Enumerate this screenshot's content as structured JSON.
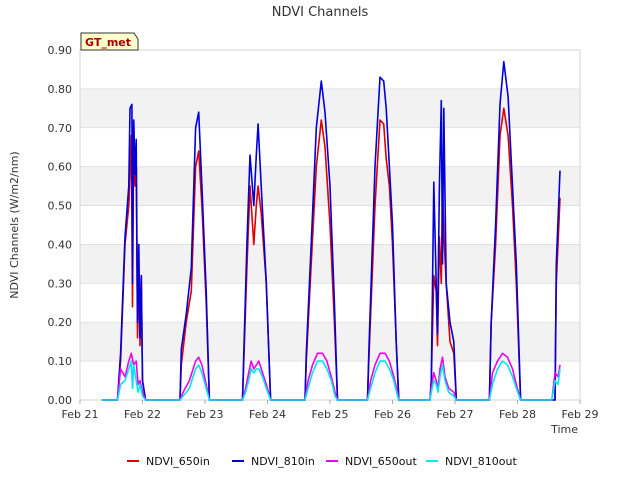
{
  "chart_data": {
    "type": "line",
    "title": "NDVI Channels",
    "xlabel": "Time",
    "ylabel": "NDVI Channels (W/m2/nm)",
    "badge": "GT_met",
    "xlim": [
      21.0,
      29.0
    ],
    "ylim": [
      0.0,
      0.9
    ],
    "x_ticks": [
      21,
      22,
      23,
      24,
      25,
      26,
      27,
      28,
      29
    ],
    "x_tick_labels": [
      "Feb 21",
      "Feb 22",
      "Feb 23",
      "Feb 24",
      "Feb 25",
      "Feb 26",
      "Feb 27",
      "Feb 28",
      "Feb 29"
    ],
    "y_ticks": [
      0.0,
      0.1,
      0.2,
      0.3,
      0.4,
      0.5,
      0.6,
      0.7,
      0.8,
      0.9
    ],
    "y_tick_labels": [
      "0.00",
      "0.10",
      "0.20",
      "0.30",
      "0.40",
      "0.50",
      "0.60",
      "0.70",
      "0.80",
      "0.90"
    ],
    "legend_position": "bottom",
    "series": [
      {
        "name": "NDVI_650in",
        "color": "#dd0000",
        "points": [
          [
            21.35,
            0
          ],
          [
            21.6,
            0
          ],
          [
            21.65,
            0.1
          ],
          [
            21.72,
            0.4
          ],
          [
            21.78,
            0.5
          ],
          [
            21.82,
            0.68
          ],
          [
            21.84,
            0.24
          ],
          [
            21.86,
            0.72
          ],
          [
            21.88,
            0.55
          ],
          [
            21.9,
            0.6
          ],
          [
            21.92,
            0.16
          ],
          [
            21.94,
            0.33
          ],
          [
            21.96,
            0.14
          ],
          [
            21.98,
            0.32
          ],
          [
            22.0,
            0.05
          ],
          [
            22.05,
            0
          ],
          [
            22.6,
            0
          ],
          [
            22.62,
            0.09
          ],
          [
            22.7,
            0.2
          ],
          [
            22.78,
            0.28
          ],
          [
            22.85,
            0.6
          ],
          [
            22.9,
            0.64
          ],
          [
            22.95,
            0.5
          ],
          [
            23.02,
            0.25
          ],
          [
            23.07,
            0
          ],
          [
            23.6,
            0
          ],
          [
            23.62,
            0.1
          ],
          [
            23.67,
            0.34
          ],
          [
            23.72,
            0.55
          ],
          [
            23.78,
            0.4
          ],
          [
            23.82,
            0.5
          ],
          [
            23.85,
            0.55
          ],
          [
            23.9,
            0.48
          ],
          [
            23.98,
            0.3
          ],
          [
            24.05,
            0
          ],
          [
            24.6,
            0
          ],
          [
            24.62,
            0.1
          ],
          [
            24.7,
            0.35
          ],
          [
            24.78,
            0.6
          ],
          [
            24.86,
            0.72
          ],
          [
            24.92,
            0.65
          ],
          [
            25.0,
            0.45
          ],
          [
            25.07,
            0.2
          ],
          [
            25.12,
            0
          ],
          [
            25.6,
            0
          ],
          [
            25.62,
            0.1
          ],
          [
            25.72,
            0.5
          ],
          [
            25.8,
            0.72
          ],
          [
            25.86,
            0.71
          ],
          [
            25.9,
            0.62
          ],
          [
            25.95,
            0.55
          ],
          [
            26.0,
            0.4
          ],
          [
            26.06,
            0.15
          ],
          [
            26.1,
            0
          ],
          [
            26.6,
            0
          ],
          [
            26.62,
            0.05
          ],
          [
            26.66,
            0.32
          ],
          [
            26.7,
            0.28
          ],
          [
            26.72,
            0.14
          ],
          [
            26.75,
            0.42
          ],
          [
            26.78,
            0.3
          ],
          [
            26.8,
            0.55
          ],
          [
            26.82,
            0.43
          ],
          [
            26.86,
            0.3
          ],
          [
            26.92,
            0.15
          ],
          [
            26.98,
            0.12
          ],
          [
            27.02,
            0
          ],
          [
            27.55,
            0
          ],
          [
            27.58,
            0.2
          ],
          [
            27.65,
            0.4
          ],
          [
            27.72,
            0.68
          ],
          [
            27.78,
            0.75
          ],
          [
            27.85,
            0.68
          ],
          [
            27.92,
            0.5
          ],
          [
            27.98,
            0.3
          ],
          [
            28.05,
            0
          ],
          [
            28.6,
            0
          ],
          [
            28.62,
            0.3
          ],
          [
            28.68,
            0.52
          ]
        ]
      },
      {
        "name": "NDVI_810in",
        "color": "#0000dd",
        "points": [
          [
            21.35,
            0
          ],
          [
            21.6,
            0
          ],
          [
            21.65,
            0.12
          ],
          [
            21.72,
            0.42
          ],
          [
            21.78,
            0.55
          ],
          [
            21.8,
            0.75
          ],
          [
            21.83,
            0.76
          ],
          [
            21.84,
            0.3
          ],
          [
            21.86,
            0.72
          ],
          [
            21.88,
            0.58
          ],
          [
            21.9,
            0.67
          ],
          [
            21.92,
            0.2
          ],
          [
            21.94,
            0.4
          ],
          [
            21.96,
            0.16
          ],
          [
            21.98,
            0.32
          ],
          [
            22.0,
            0.05
          ],
          [
            22.05,
            0
          ],
          [
            22.6,
            0
          ],
          [
            22.62,
            0.13
          ],
          [
            22.7,
            0.22
          ],
          [
            22.78,
            0.34
          ],
          [
            22.85,
            0.7
          ],
          [
            22.9,
            0.74
          ],
          [
            22.95,
            0.55
          ],
          [
            23.02,
            0.28
          ],
          [
            23.07,
            0
          ],
          [
            23.6,
            0
          ],
          [
            23.62,
            0.12
          ],
          [
            23.67,
            0.4
          ],
          [
            23.72,
            0.63
          ],
          [
            23.78,
            0.5
          ],
          [
            23.82,
            0.63
          ],
          [
            23.85,
            0.71
          ],
          [
            23.9,
            0.55
          ],
          [
            23.98,
            0.3
          ],
          [
            24.05,
            0
          ],
          [
            24.6,
            0
          ],
          [
            24.62,
            0.12
          ],
          [
            24.7,
            0.4
          ],
          [
            24.78,
            0.7
          ],
          [
            24.86,
            0.82
          ],
          [
            24.92,
            0.74
          ],
          [
            25.0,
            0.55
          ],
          [
            25.07,
            0.25
          ],
          [
            25.12,
            0
          ],
          [
            25.6,
            0
          ],
          [
            25.62,
            0.12
          ],
          [
            25.72,
            0.6
          ],
          [
            25.8,
            0.83
          ],
          [
            25.86,
            0.82
          ],
          [
            25.9,
            0.75
          ],
          [
            25.95,
            0.6
          ],
          [
            26.0,
            0.45
          ],
          [
            26.06,
            0.15
          ],
          [
            26.1,
            0
          ],
          [
            26.6,
            0
          ],
          [
            26.62,
            0.05
          ],
          [
            26.66,
            0.56
          ],
          [
            26.7,
            0.3
          ],
          [
            26.72,
            0.17
          ],
          [
            26.75,
            0.55
          ],
          [
            26.78,
            0.77
          ],
          [
            26.8,
            0.35
          ],
          [
            26.82,
            0.75
          ],
          [
            26.86,
            0.3
          ],
          [
            26.92,
            0.2
          ],
          [
            26.98,
            0.15
          ],
          [
            27.02,
            0
          ],
          [
            27.55,
            0
          ],
          [
            27.58,
            0.2
          ],
          [
            27.65,
            0.45
          ],
          [
            27.72,
            0.76
          ],
          [
            27.78,
            0.87
          ],
          [
            27.85,
            0.78
          ],
          [
            27.92,
            0.55
          ],
          [
            27.98,
            0.35
          ],
          [
            28.05,
            0
          ],
          [
            28.6,
            0
          ],
          [
            28.62,
            0.35
          ],
          [
            28.68,
            0.59
          ]
        ]
      },
      {
        "name": "NDVI_650out",
        "color": "#ee00ee",
        "points": [
          [
            21.35,
            0
          ],
          [
            21.6,
            0
          ],
          [
            21.65,
            0.08
          ],
          [
            21.72,
            0.06
          ],
          [
            21.78,
            0.1
          ],
          [
            21.82,
            0.12
          ],
          [
            21.86,
            0.09
          ],
          [
            21.9,
            0.1
          ],
          [
            21.93,
            0.04
          ],
          [
            21.96,
            0.05
          ],
          [
            22.0,
            0.02
          ],
          [
            22.05,
            0
          ],
          [
            22.6,
            0
          ],
          [
            22.65,
            0.02
          ],
          [
            22.75,
            0.05
          ],
          [
            22.85,
            0.1
          ],
          [
            22.9,
            0.11
          ],
          [
            22.95,
            0.09
          ],
          [
            23.02,
            0.04
          ],
          [
            23.07,
            0
          ],
          [
            23.6,
            0
          ],
          [
            23.65,
            0.03
          ],
          [
            23.7,
            0.07
          ],
          [
            23.74,
            0.1
          ],
          [
            23.78,
            0.08
          ],
          [
            23.82,
            0.09
          ],
          [
            23.86,
            0.1
          ],
          [
            23.92,
            0.07
          ],
          [
            23.98,
            0.04
          ],
          [
            24.05,
            0
          ],
          [
            24.6,
            0
          ],
          [
            24.65,
            0.05
          ],
          [
            24.72,
            0.09
          ],
          [
            24.8,
            0.12
          ],
          [
            24.88,
            0.12
          ],
          [
            24.95,
            0.1
          ],
          [
            25.02,
            0.06
          ],
          [
            25.08,
            0.02
          ],
          [
            25.12,
            0
          ],
          [
            25.6,
            0
          ],
          [
            25.65,
            0.05
          ],
          [
            25.72,
            0.09
          ],
          [
            25.8,
            0.12
          ],
          [
            25.88,
            0.12
          ],
          [
            25.95,
            0.1
          ],
          [
            26.02,
            0.06
          ],
          [
            26.08,
            0.02
          ],
          [
            26.1,
            0
          ],
          [
            26.6,
            0
          ],
          [
            26.62,
            0.03
          ],
          [
            26.66,
            0.07
          ],
          [
            26.7,
            0.05
          ],
          [
            26.73,
            0.03
          ],
          [
            26.76,
            0.08
          ],
          [
            26.8,
            0.11
          ],
          [
            26.84,
            0.06
          ],
          [
            26.9,
            0.03
          ],
          [
            26.98,
            0.02
          ],
          [
            27.02,
            0
          ],
          [
            27.55,
            0
          ],
          [
            27.6,
            0.07
          ],
          [
            27.68,
            0.1
          ],
          [
            27.76,
            0.12
          ],
          [
            27.84,
            0.11
          ],
          [
            27.92,
            0.08
          ],
          [
            27.98,
            0.04
          ],
          [
            28.05,
            0
          ],
          [
            28.55,
            0
          ],
          [
            28.6,
            0.07
          ],
          [
            28.65,
            0.06
          ],
          [
            28.68,
            0.09
          ]
        ]
      },
      {
        "name": "NDVI_810out",
        "color": "#00e5ee",
        "points": [
          [
            21.35,
            0
          ],
          [
            21.6,
            0
          ],
          [
            21.65,
            0.04
          ],
          [
            21.72,
            0.05
          ],
          [
            21.78,
            0.08
          ],
          [
            21.82,
            0.1
          ],
          [
            21.84,
            0.03
          ],
          [
            21.86,
            0.09
          ],
          [
            21.9,
            0.05
          ],
          [
            21.93,
            0.02
          ],
          [
            21.96,
            0.04
          ],
          [
            22.0,
            0.01
          ],
          [
            22.05,
            0
          ],
          [
            22.6,
            0
          ],
          [
            22.65,
            0.01
          ],
          [
            22.75,
            0.03
          ],
          [
            22.85,
            0.08
          ],
          [
            22.9,
            0.09
          ],
          [
            22.95,
            0.07
          ],
          [
            23.02,
            0.03
          ],
          [
            23.07,
            0
          ],
          [
            23.6,
            0
          ],
          [
            23.65,
            0.02
          ],
          [
            23.7,
            0.05
          ],
          [
            23.74,
            0.08
          ],
          [
            23.78,
            0.07
          ],
          [
            23.82,
            0.08
          ],
          [
            23.86,
            0.08
          ],
          [
            23.92,
            0.06
          ],
          [
            23.98,
            0.03
          ],
          [
            24.05,
            0
          ],
          [
            24.6,
            0
          ],
          [
            24.65,
            0.03
          ],
          [
            24.72,
            0.07
          ],
          [
            24.8,
            0.1
          ],
          [
            24.88,
            0.1
          ],
          [
            24.95,
            0.08
          ],
          [
            25.02,
            0.05
          ],
          [
            25.08,
            0.01
          ],
          [
            25.12,
            0
          ],
          [
            25.6,
            0
          ],
          [
            25.65,
            0.03
          ],
          [
            25.72,
            0.07
          ],
          [
            25.8,
            0.1
          ],
          [
            25.88,
            0.1
          ],
          [
            25.95,
            0.08
          ],
          [
            26.02,
            0.05
          ],
          [
            26.08,
            0.01
          ],
          [
            26.1,
            0
          ],
          [
            26.6,
            0
          ],
          [
            26.62,
            0.02
          ],
          [
            26.66,
            0.05
          ],
          [
            26.7,
            0.04
          ],
          [
            26.73,
            0.02
          ],
          [
            26.76,
            0.06
          ],
          [
            26.8,
            0.09
          ],
          [
            26.84,
            0.05
          ],
          [
            26.9,
            0.02
          ],
          [
            26.98,
            0.01
          ],
          [
            27.02,
            0
          ],
          [
            27.55,
            0
          ],
          [
            27.6,
            0.04
          ],
          [
            27.68,
            0.08
          ],
          [
            27.76,
            0.1
          ],
          [
            27.84,
            0.09
          ],
          [
            27.92,
            0.06
          ],
          [
            27.98,
            0.03
          ],
          [
            28.05,
            0
          ],
          [
            28.55,
            0
          ],
          [
            28.6,
            0.05
          ],
          [
            28.65,
            0.04
          ],
          [
            28.68,
            0.08
          ]
        ]
      }
    ]
  }
}
